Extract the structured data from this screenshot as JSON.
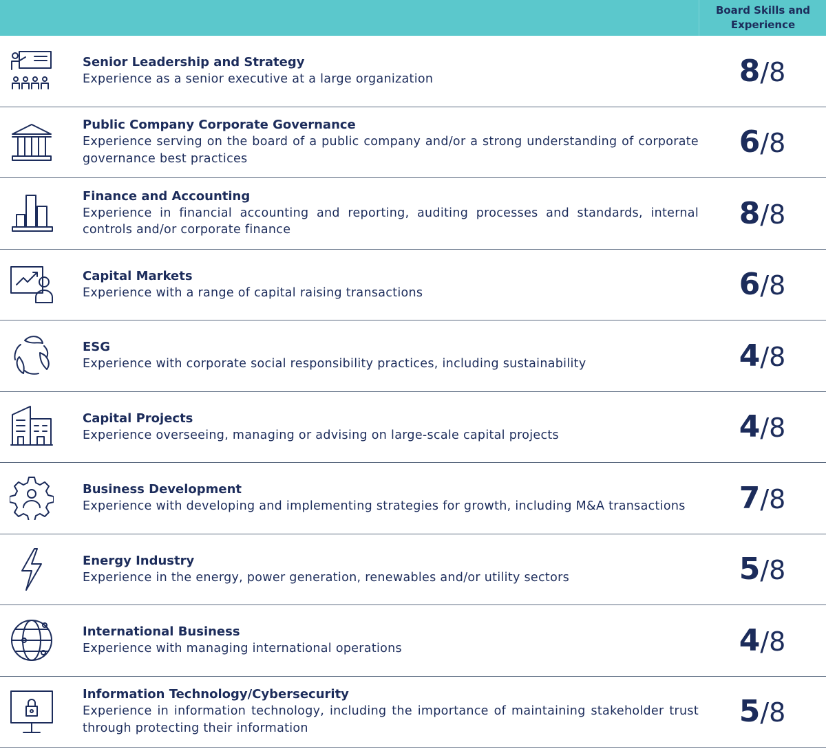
{
  "header": {
    "column_title": "Board Skills and Experience"
  },
  "rows": [
    {
      "title": "Senior Leadership and Strategy",
      "description": "Experience as a senior executive at a large organization",
      "score": 8,
      "separator": "/",
      "total": 8
    },
    {
      "title": "Public Company Corporate Governance",
      "description": "Experience serving on the board of a public company and/or a strong understanding of corporate governance best practices",
      "score": 6,
      "separator": "/",
      "total": 8
    },
    {
      "title": "Finance and Accounting",
      "description": "Experience in financial accounting and reporting, auditing processes and standards, internal controls and/or corporate finance",
      "score": 8,
      "separator": "/",
      "total": 8
    },
    {
      "title": "Capital Markets",
      "description": "Experience with a range of capital raising transactions",
      "score": 6,
      "separator": "/",
      "total": 8
    },
    {
      "title": "ESG",
      "description": "Experience with corporate social responsibility practices, including sustainability",
      "score": 4,
      "separator": "/",
      "total": 8
    },
    {
      "title": "Capital Projects",
      "description": "Experience overseeing, managing or advising on large-scale capital projects",
      "score": 4,
      "separator": "/",
      "total": 8
    },
    {
      "title": "Business Development",
      "description": "Experience with developing and implementing strategies for growth, including M&A transactions",
      "score": 7,
      "separator": "/",
      "total": 8
    },
    {
      "title": "Energy Industry",
      "description": "Experience in the energy, power generation, renewables and/or utility sectors",
      "score": 5,
      "separator": "/",
      "total": 8
    },
    {
      "title": "International Business",
      "description": "Experience with managing international operations",
      "score": 4,
      "separator": "/",
      "total": 8
    },
    {
      "title": "Information Technology/Cybersecurity",
      "description": "Experience in information technology, including the importance of maintaining stakeholder trust through protecting their information",
      "score": 5,
      "separator": "/",
      "total": 8
    }
  ]
}
